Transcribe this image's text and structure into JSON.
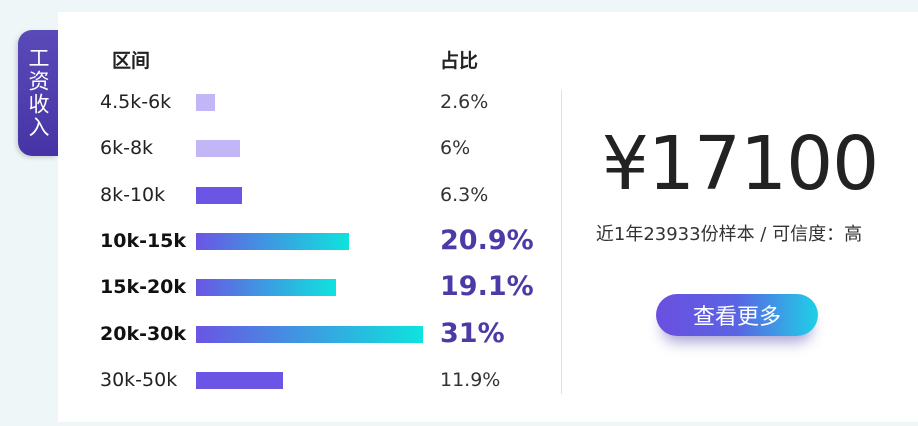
{
  "tag": "工资收入",
  "headers": {
    "range": "区间",
    "share": "占比"
  },
  "chart_data": {
    "type": "bar",
    "orientation": "horizontal",
    "categories": [
      "4.5k-6k",
      "6k-8k",
      "8k-10k",
      "10k-15k",
      "15k-20k",
      "20k-30k",
      "30k-50k"
    ],
    "values": [
      2.6,
      6,
      6.3,
      20.9,
      19.1,
      31,
      11.9
    ],
    "value_labels": [
      "2.6%",
      "6%",
      "6.3%",
      "20.9%",
      "19.1%",
      "31%",
      "11.9%"
    ],
    "highlighted": [
      false,
      false,
      false,
      true,
      true,
      true,
      false
    ],
    "colors": [
      "#c3b6f7",
      "#c3b6f7",
      "#6a55e4",
      "gradient",
      "gradient",
      "gradient",
      "#6a55e4"
    ],
    "gradient": [
      "#6a55e4",
      "#0ee3de"
    ],
    "unit": "%",
    "max": 31
  },
  "summary": {
    "salary": "¥17100",
    "sample_text": "近1年23933份样本 / 可信度：高"
  },
  "more_button": "查看更多"
}
